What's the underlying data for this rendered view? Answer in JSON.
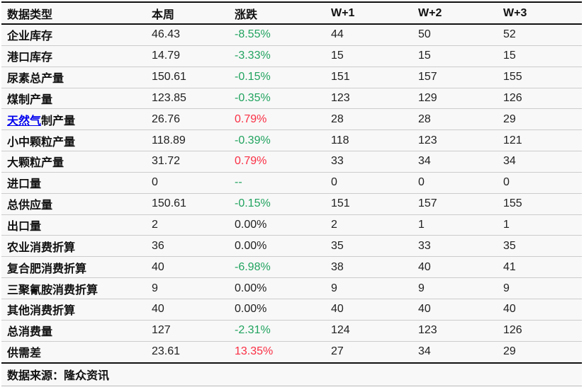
{
  "table": {
    "columns": [
      "数据类型",
      "本周",
      "涨跌",
      "W+1",
      "W+2",
      "W+3"
    ],
    "rows": [
      {
        "label": "企业库存",
        "link": "",
        "week": "46.43",
        "change": "-8.55%",
        "dir": "down",
        "w1": "44",
        "w2": "50",
        "w3": "52"
      },
      {
        "label": "港口库存",
        "link": "",
        "week": "14.79",
        "change": "-3.33%",
        "dir": "down",
        "w1": "15",
        "w2": "15",
        "w3": "15"
      },
      {
        "label": "尿素总产量",
        "link": "",
        "week": "150.61",
        "change": "-0.15%",
        "dir": "down",
        "w1": "151",
        "w2": "157",
        "w3": "155"
      },
      {
        "label": "煤制产量",
        "link": "",
        "week": "123.85",
        "change": "-0.35%",
        "dir": "down",
        "w1": "123",
        "w2": "129",
        "w3": "126"
      },
      {
        "label": "制产量",
        "link": "天然气",
        "week": "26.76",
        "change": "0.79%",
        "dir": "up",
        "w1": "28",
        "w2": "28",
        "w3": "29"
      },
      {
        "label": "小中颗粒产量",
        "link": "",
        "week": "118.89",
        "change": "-0.39%",
        "dir": "down",
        "w1": "118",
        "w2": "123",
        "w3": "121"
      },
      {
        "label": "大颗粒产量",
        "link": "",
        "week": "31.72",
        "change": "0.79%",
        "dir": "up",
        "w1": "33",
        "w2": "34",
        "w3": "34"
      },
      {
        "label": "进口量",
        "link": "",
        "week": "0",
        "change": "--",
        "dir": "na",
        "w1": "0",
        "w2": "0",
        "w3": "0"
      },
      {
        "label": "总供应量",
        "link": "",
        "week": "150.61",
        "change": "-0.15%",
        "dir": "down",
        "w1": "151",
        "w2": "157",
        "w3": "155"
      },
      {
        "label": "出口量",
        "link": "",
        "week": "2",
        "change": "0.00%",
        "dir": "flat",
        "w1": "2",
        "w2": "1",
        "w3": "1"
      },
      {
        "label": "农业消费折算",
        "link": "",
        "week": "36",
        "change": "0.00%",
        "dir": "flat",
        "w1": "35",
        "w2": "33",
        "w3": "35"
      },
      {
        "label": "复合肥消费折算",
        "link": "",
        "week": "40",
        "change": "-6.98%",
        "dir": "down",
        "w1": "38",
        "w2": "40",
        "w3": "41"
      },
      {
        "label": "三聚氰胺消费折算",
        "link": "",
        "week": "9",
        "change": "0.00%",
        "dir": "flat",
        "w1": "9",
        "w2": "9",
        "w3": "9"
      },
      {
        "label": "其他消费折算",
        "link": "",
        "week": "40",
        "change": "0.00%",
        "dir": "flat",
        "w1": "40",
        "w2": "40",
        "w3": "40"
      },
      {
        "label": "总消费量",
        "link": "",
        "week": "127",
        "change": "-2.31%",
        "dir": "down",
        "w1": "124",
        "w2": "123",
        "w3": "126"
      },
      {
        "label": "供需差",
        "link": "",
        "week": "23.61",
        "change": "13.35%",
        "dir": "up",
        "w1": "27",
        "w2": "34",
        "w3": "29"
      }
    ]
  },
  "footer": {
    "source": "数据来源：隆众资讯"
  },
  "colors": {
    "up": "#fa2f44",
    "down": "#21a35f",
    "link": "#0000ee",
    "row_bg": "#f8f8f8"
  }
}
